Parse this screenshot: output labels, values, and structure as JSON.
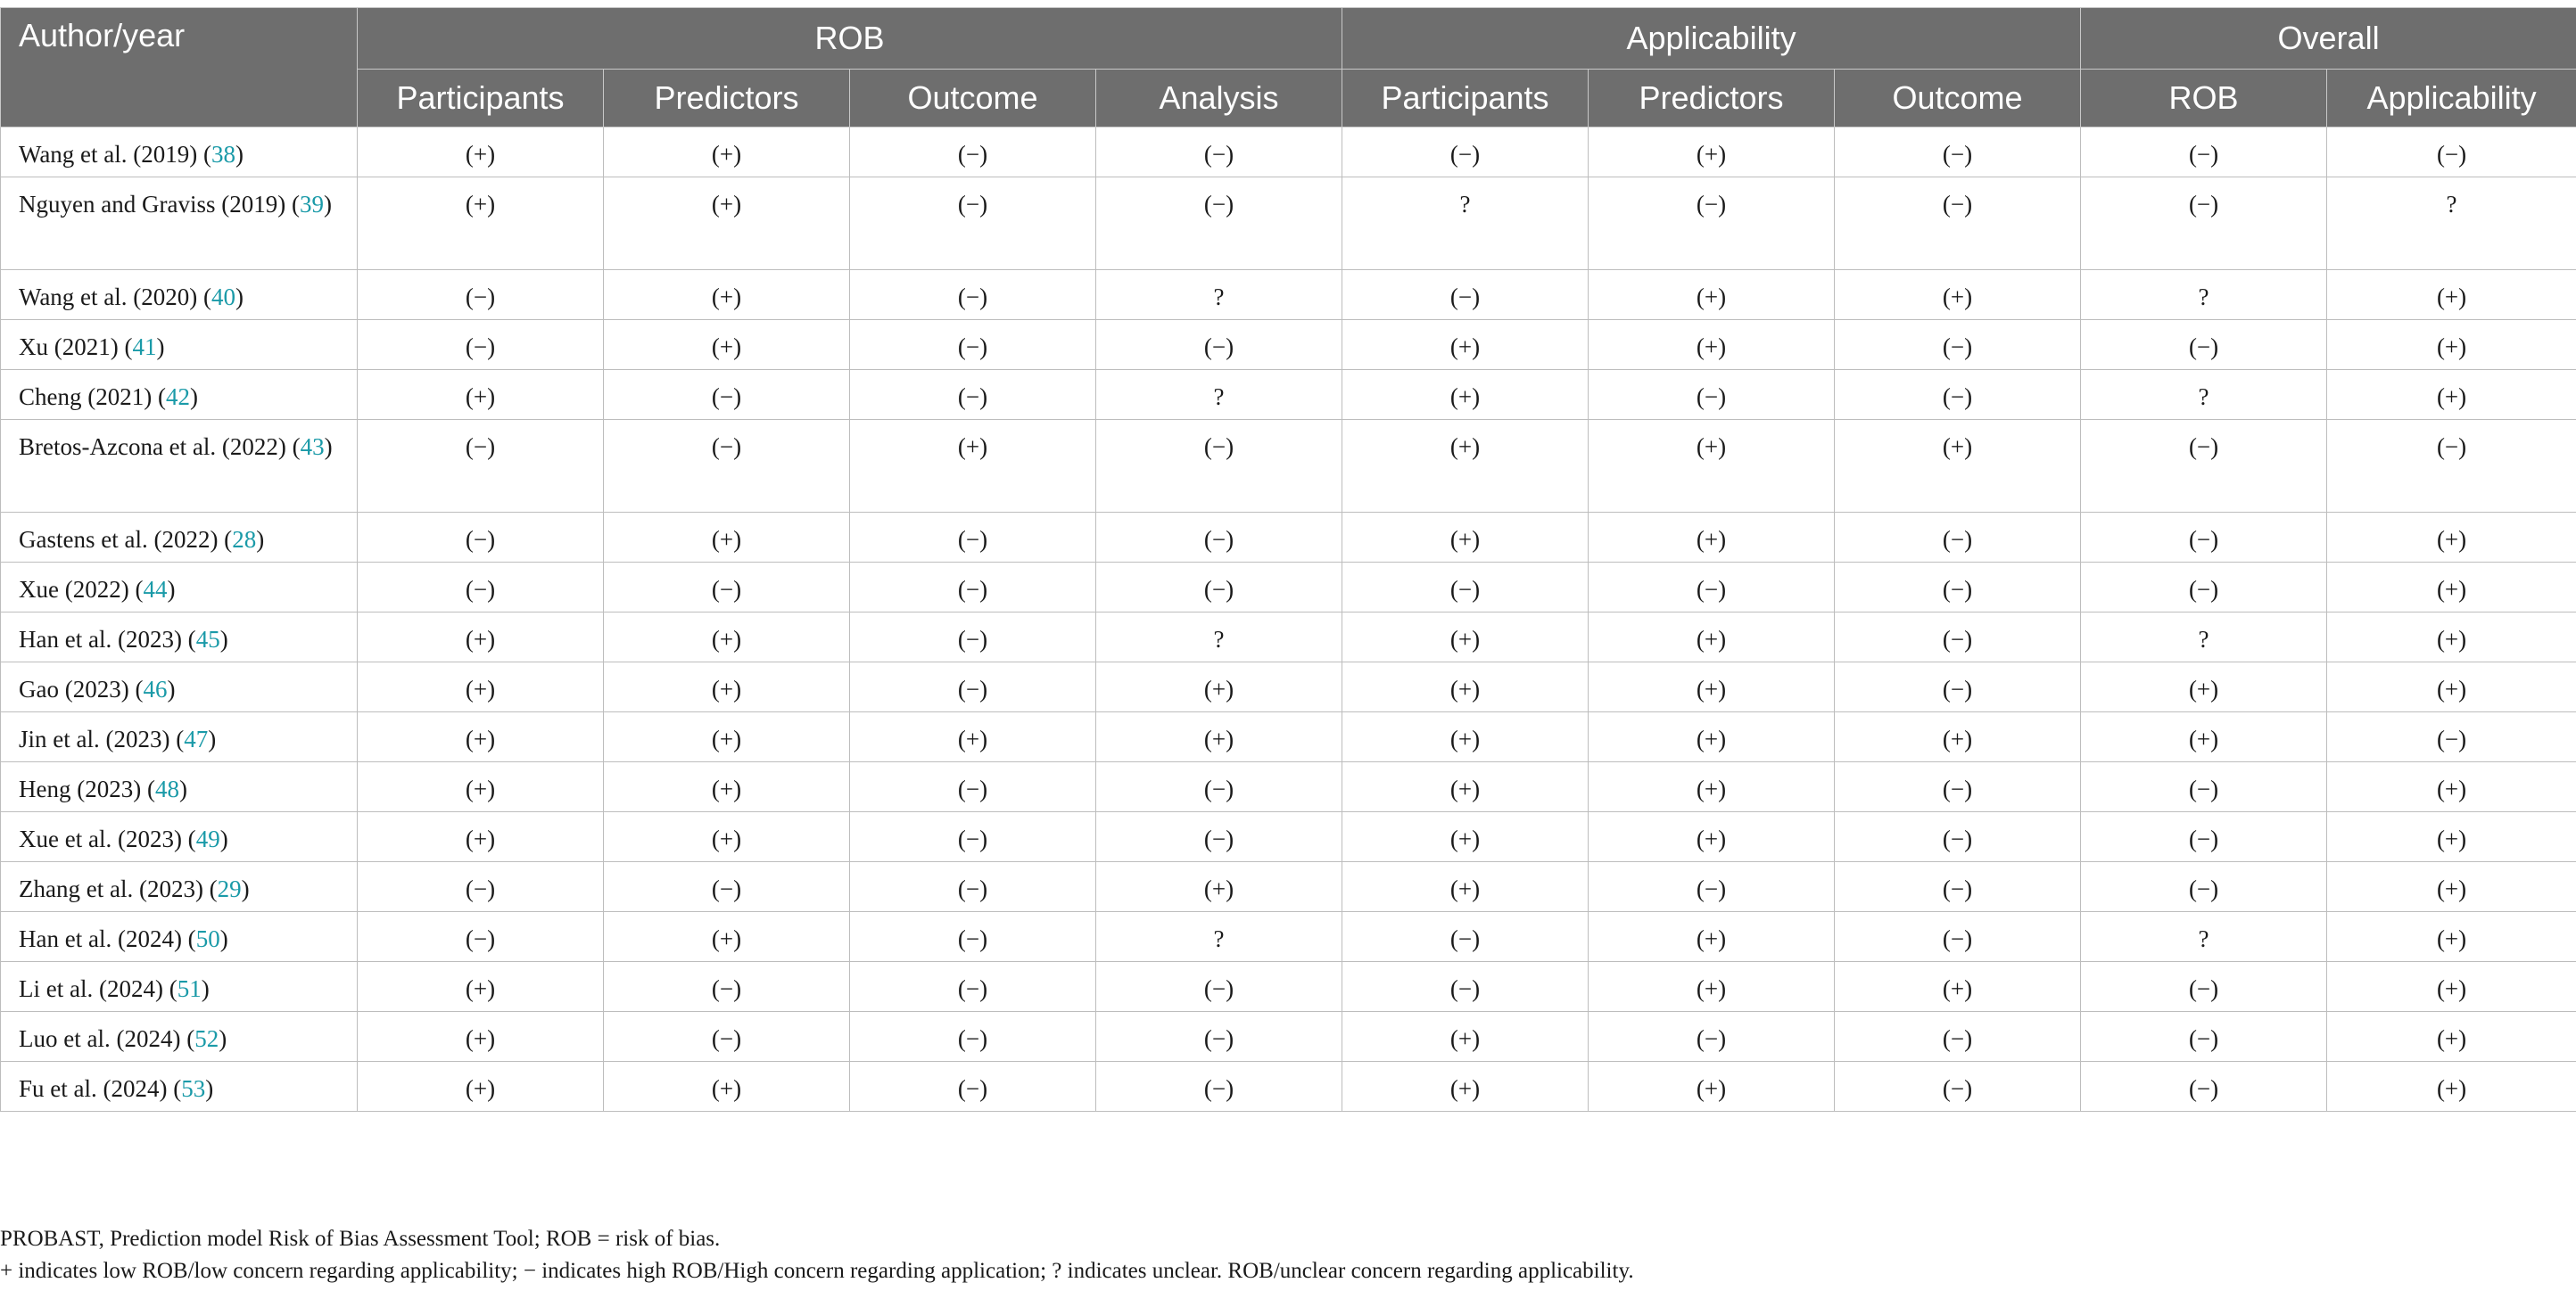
{
  "headers": {
    "author": "Author/year",
    "groups": [
      "ROB",
      "Applicability",
      "Overall"
    ],
    "sub": [
      "Participants",
      "Predictors",
      "Outcome",
      "Analysis",
      "Participants",
      "Predictors",
      "Outcome",
      "ROB",
      "Applicability"
    ]
  },
  "rows": [
    {
      "author": "Wang et al. (2019) (",
      "ref": "38",
      "tail": ")",
      "cells": [
        "(+)",
        "(+)",
        "(−)",
        "(−)",
        "(−)",
        "(+)",
        "(−)",
        "(−)",
        "(−)"
      ]
    },
    {
      "author": "Nguyen and Graviss (2019) (",
      "ref": "39",
      "tail": ")",
      "cells": [
        "(+)",
        "(+)",
        "(−)",
        "(−)",
        "?",
        "(−)",
        "(−)",
        "(−)",
        "?"
      ]
    },
    {
      "author": "Wang et al. (2020) (",
      "ref": "40",
      "tail": ")",
      "cells": [
        "(−)",
        "(+)",
        "(−)",
        "?",
        "(−)",
        "(+)",
        "(+)",
        "?",
        "(+)"
      ]
    },
    {
      "author": "Xu (2021) (",
      "ref": "41",
      "tail": ")",
      "cells": [
        "(−)",
        "(+)",
        "(−)",
        "(−)",
        "(+)",
        "(+)",
        "(−)",
        "(−)",
        "(+)"
      ]
    },
    {
      "author": "Cheng (2021) (",
      "ref": "42",
      "tail": ")",
      "cells": [
        "(+)",
        "(−)",
        "(−)",
        "?",
        "(+)",
        "(−)",
        "(−)",
        "?",
        "(+)"
      ]
    },
    {
      "author": "Bretos-Azcona et al. (2022) (",
      "ref": "43",
      "tail": ")",
      "cells": [
        "(−)",
        "(−)",
        "(+)",
        "(−)",
        "(+)",
        "(+)",
        "(+)",
        "(−)",
        "(−)"
      ]
    },
    {
      "author": "Gastens et al. (2022) (",
      "ref": "28",
      "tail": ")",
      "cells": [
        "(−)",
        "(+)",
        "(−)",
        "(−)",
        "(+)",
        "(+)",
        "(−)",
        "(−)",
        "(+)"
      ]
    },
    {
      "author": "Xue (2022) (",
      "ref": "44",
      "tail": ")",
      "cells": [
        "(−)",
        "(−)",
        "(−)",
        "(−)",
        "(−)",
        "(−)",
        "(−)",
        "(−)",
        "(+)"
      ]
    },
    {
      "author": "Han et al. (2023) (",
      "ref": "45",
      "tail": ")",
      "cells": [
        "(+)",
        "(+)",
        "(−)",
        "?",
        "(+)",
        "(+)",
        "(−)",
        "?",
        "(+)"
      ]
    },
    {
      "author": "Gao (2023) (",
      "ref": "46",
      "tail": ")",
      "cells": [
        "(+)",
        "(+)",
        "(−)",
        "(+)",
        "(+)",
        "(+)",
        "(−)",
        "(+)",
        "(+)"
      ]
    },
    {
      "author": "Jin et al. (2023) (",
      "ref": "47",
      "tail": ")",
      "cells": [
        "(+)",
        "(+)",
        "(+)",
        "(+)",
        "(+)",
        "(+)",
        "(+)",
        "(+)",
        "(−)"
      ]
    },
    {
      "author": "Heng (2023) (",
      "ref": "48",
      "tail": ")",
      "cells": [
        "(+)",
        "(+)",
        "(−)",
        "(−)",
        "(+)",
        "(+)",
        "(−)",
        "(−)",
        "(+)"
      ]
    },
    {
      "author": "Xue et al. (2023) (",
      "ref": "49",
      "tail": ")",
      "cells": [
        "(+)",
        "(+)",
        "(−)",
        "(−)",
        "(+)",
        "(+)",
        "(−)",
        "(−)",
        "(+)"
      ]
    },
    {
      "author": "Zhang et al. (2023) (",
      "ref": "29",
      "tail": ")",
      "cells": [
        "(−)",
        "(−)",
        "(−)",
        "(+)",
        "(+)",
        "(−)",
        "(−)",
        "(−)",
        "(+)"
      ]
    },
    {
      "author": "Han et al. (2024) (",
      "ref": "50",
      "tail": ")",
      "cells": [
        "(−)",
        "(+)",
        "(−)",
        "?",
        "(−)",
        "(+)",
        "(−)",
        "?",
        "(+)"
      ]
    },
    {
      "author": "Li et al. (2024) (",
      "ref": "51",
      "tail": ")",
      "cells": [
        "(+)",
        "(−)",
        "(−)",
        "(−)",
        "(−)",
        "(+)",
        "(+)",
        "(−)",
        "(+)"
      ]
    },
    {
      "author": "Luo et al. (2024) (",
      "ref": "52",
      "tail": ")",
      "cells": [
        "(+)",
        "(−)",
        "(−)",
        "(−)",
        "(+)",
        "(−)",
        "(−)",
        "(−)",
        "(+)"
      ]
    },
    {
      "author": "Fu et al. (2024) (",
      "ref": "53",
      "tail": ")",
      "cells": [
        "(+)",
        "(+)",
        "(−)",
        "(−)",
        "(+)",
        "(+)",
        "(−)",
        "(−)",
        "(+)"
      ]
    }
  ],
  "footnotes": [
    "PROBAST, Prediction model Risk of Bias Assessment Tool; ROB = risk of bias.",
    "+ indicates low ROB/low concern regarding applicability; − indicates high ROB/High concern regarding application; ? indicates unclear. ROB/unclear concern regarding applicability."
  ]
}
